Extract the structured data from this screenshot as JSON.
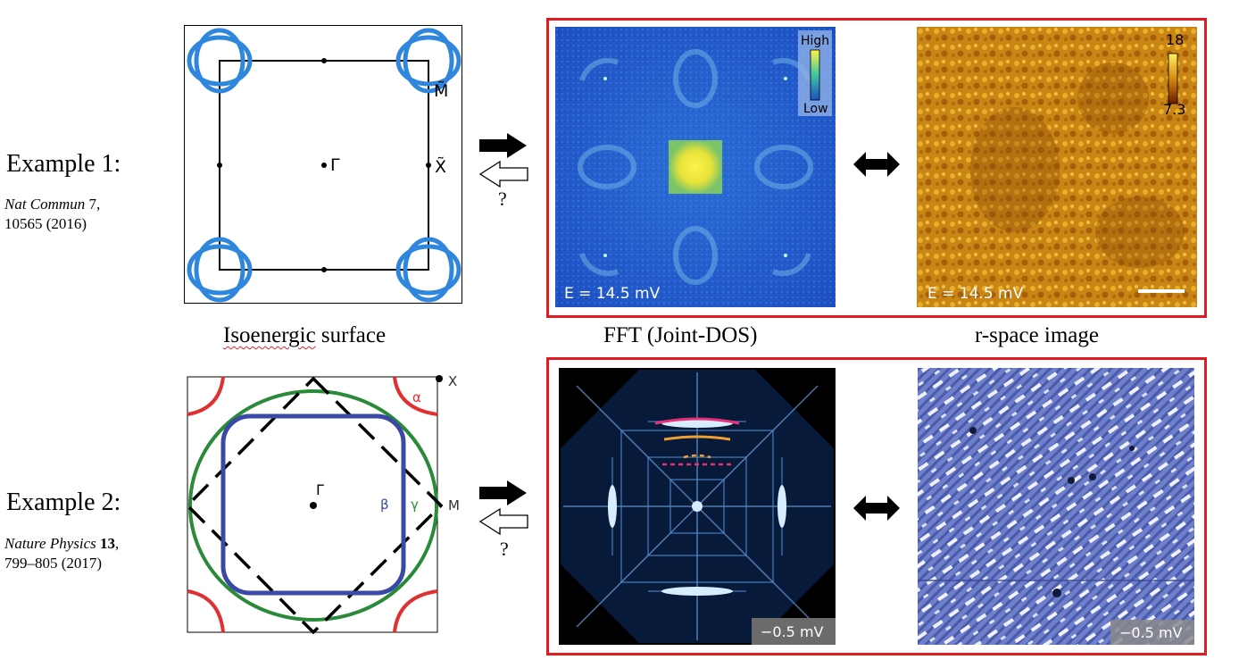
{
  "example1": {
    "title": "Example 1:",
    "ref_journal": "Nat Commun",
    "ref_volume": "7",
    "ref_rest": ",",
    "ref_line2": "10565 (2016)",
    "fermi_labels": {
      "M": "M̃",
      "X": "X̃",
      "Gamma": "Γ"
    },
    "fft_colorbar": {
      "high": "High",
      "low": "Low"
    },
    "fft_energy": "E = 14.5 mV",
    "rspace_colorbar": {
      "max": "18",
      "min": "7.3"
    },
    "rspace_energy": "E = 14.5 mV",
    "question": "?"
  },
  "example2": {
    "title": "Example 2:",
    "ref_journal": "Nature Physics",
    "ref_volume": "13",
    "ref_rest": ",",
    "ref_line2": "799–805 (2017)",
    "fermi_labels": {
      "X": "X",
      "M": "M",
      "Gamma": "Γ",
      "alpha": "α",
      "beta": "β",
      "gamma": "γ"
    },
    "fft_energy": "−0.5 mV",
    "rspace_energy": "−0.5 mV",
    "question": "?"
  },
  "captions": {
    "isoenergic": "Isoenergic surface",
    "fft": "FFT (Joint-DOS)",
    "rspace": "r-space image"
  },
  "colors": {
    "accent_red": "#e01b22",
    "fermi_blue": "#2f86dd",
    "green": "#2a8a3a",
    "navy": "#3a48a6",
    "red_pocket": "#e03030"
  }
}
